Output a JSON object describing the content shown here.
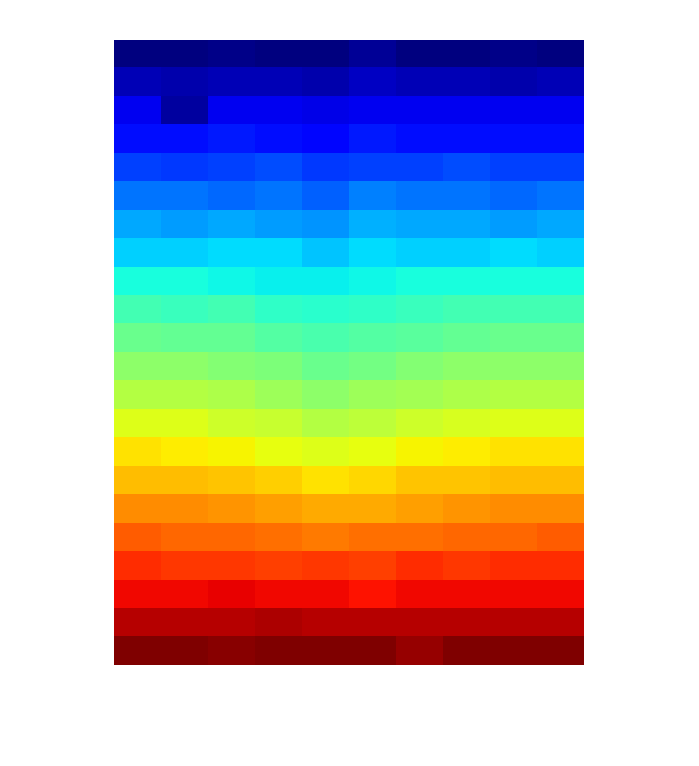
{
  "chart_data": {
    "type": "heatmap",
    "color": "jet",
    "tick_labels": false,
    "cells": [
      [
        0.0,
        0.0,
        0.01,
        0.0,
        0.0,
        0.02,
        0.0,
        0.0,
        0.01,
        0.0
      ],
      [
        0.05,
        0.04,
        0.05,
        0.05,
        0.04,
        0.06,
        0.05,
        0.05,
        0.04,
        0.05
      ],
      [
        0.1,
        0.03,
        0.1,
        0.1,
        0.09,
        0.1,
        0.1,
        0.1,
        0.1,
        0.1
      ],
      [
        0.14,
        0.14,
        0.15,
        0.14,
        0.13,
        0.15,
        0.14,
        0.14,
        0.14,
        0.14
      ],
      [
        0.19,
        0.18,
        0.19,
        0.2,
        0.18,
        0.19,
        0.19,
        0.2,
        0.19,
        0.19
      ],
      [
        0.24,
        0.24,
        0.23,
        0.24,
        0.22,
        0.25,
        0.24,
        0.24,
        0.23,
        0.24
      ],
      [
        0.29,
        0.28,
        0.29,
        0.28,
        0.27,
        0.3,
        0.29,
        0.29,
        0.28,
        0.29
      ],
      [
        0.33,
        0.33,
        0.34,
        0.34,
        0.32,
        0.34,
        0.33,
        0.33,
        0.34,
        0.33
      ],
      [
        0.38,
        0.38,
        0.37,
        0.36,
        0.36,
        0.37,
        0.38,
        0.38,
        0.38,
        0.38
      ],
      [
        0.43,
        0.42,
        0.43,
        0.41,
        0.4,
        0.41,
        0.42,
        0.43,
        0.43,
        0.43
      ],
      [
        0.48,
        0.47,
        0.47,
        0.45,
        0.44,
        0.45,
        0.46,
        0.47,
        0.48,
        0.48
      ],
      [
        0.52,
        0.52,
        0.51,
        0.5,
        0.48,
        0.49,
        0.51,
        0.52,
        0.52,
        0.52
      ],
      [
        0.57,
        0.57,
        0.56,
        0.54,
        0.52,
        0.54,
        0.55,
        0.56,
        0.57,
        0.57
      ],
      [
        0.62,
        0.62,
        0.6,
        0.59,
        0.57,
        0.58,
        0.6,
        0.61,
        0.62,
        0.62
      ],
      [
        0.67,
        0.66,
        0.65,
        0.63,
        0.62,
        0.63,
        0.65,
        0.66,
        0.67,
        0.67
      ],
      [
        0.71,
        0.71,
        0.7,
        0.69,
        0.67,
        0.68,
        0.7,
        0.7,
        0.71,
        0.71
      ],
      [
        0.76,
        0.76,
        0.75,
        0.74,
        0.73,
        0.73,
        0.74,
        0.75,
        0.76,
        0.76
      ],
      [
        0.81,
        0.8,
        0.8,
        0.79,
        0.78,
        0.79,
        0.79,
        0.8,
        0.8,
        0.81
      ],
      [
        0.86,
        0.85,
        0.85,
        0.84,
        0.85,
        0.84,
        0.86,
        0.85,
        0.86,
        0.86
      ],
      [
        0.9,
        0.9,
        0.91,
        0.9,
        0.9,
        0.89,
        0.9,
        0.9,
        0.9,
        0.9
      ],
      [
        0.95,
        0.95,
        0.95,
        0.96,
        0.95,
        0.95,
        0.95,
        0.95,
        0.95,
        0.95
      ],
      [
        1.0,
        1.0,
        0.99,
        1.0,
        1.0,
        1.0,
        0.98,
        1.0,
        1.0,
        1.0
      ]
    ]
  }
}
